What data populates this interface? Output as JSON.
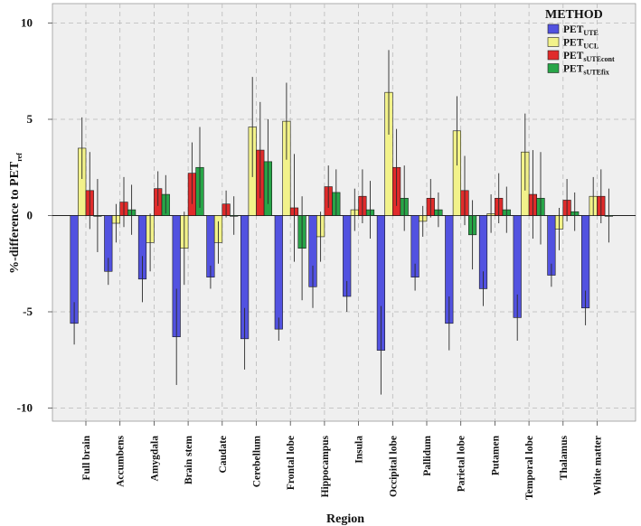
{
  "chart_data": {
    "type": "bar",
    "xlabel": "Region",
    "ylabel_main": "%-difference to PET",
    "ylabel_sub": "ref",
    "ylim": [
      -11,
      10.5
    ],
    "yticks": [
      10,
      5,
      0,
      -5,
      -10
    ],
    "grid": true,
    "legend_title": "METHOD",
    "legend_position": "top-right",
    "categories": [
      "Full brain",
      "Accumbens",
      "Amygdala",
      "Brain stem",
      "Caudate",
      "Cerebellum",
      "Frontal lobe",
      "Hippocampus",
      "Insula",
      "Occipital lobe",
      "Pallidum",
      "Parietal lobe",
      "Putamen",
      "Temporal lobe",
      "Thalamus",
      "White matter"
    ],
    "series": [
      {
        "name": "PET",
        "sub": "UTE",
        "color": "#5252e0",
        "values": [
          -5.6,
          -2.9,
          -3.3,
          -6.3,
          -3.2,
          -6.4,
          -5.9,
          -3.7,
          -4.2,
          -7.0,
          -3.2,
          -5.6,
          -3.8,
          -5.3,
          -3.1,
          -4.8
        ],
        "errors": [
          1.1,
          0.7,
          1.2,
          2.5,
          0.6,
          1.6,
          0.6,
          1.1,
          0.8,
          2.3,
          0.7,
          1.4,
          0.9,
          1.2,
          0.6,
          0.9
        ]
      },
      {
        "name": "PET",
        "sub": "UCL",
        "color": "#f2f28a",
        "values": [
          3.5,
          -0.4,
          -1.4,
          -1.7,
          -1.4,
          4.6,
          4.9,
          -1.1,
          0.3,
          6.4,
          -0.3,
          4.4,
          0.1,
          3.3,
          -0.7,
          1.0
        ],
        "errors": [
          1.6,
          1.0,
          1.5,
          1.9,
          1.1,
          2.6,
          2.0,
          1.3,
          1.1,
          2.2,
          0.8,
          1.8,
          1.0,
          2.0,
          1.1,
          1.0
        ]
      },
      {
        "name": "PET",
        "sub": "sUTEcont",
        "color": "#e02b2b",
        "values": [
          1.3,
          0.7,
          1.4,
          2.2,
          0.6,
          3.4,
          0.4,
          1.5,
          1.0,
          2.5,
          0.9,
          1.3,
          0.9,
          1.1,
          0.8,
          1.0
        ],
        "errors": [
          2.0,
          1.3,
          0.9,
          1.6,
          0.7,
          2.5,
          2.8,
          1.1,
          1.4,
          2.0,
          1.0,
          1.8,
          1.3,
          2.3,
          1.1,
          1.4
        ]
      },
      {
        "name": "PET",
        "sub": "sUTEfix",
        "color": "#28a548",
        "values": [
          0.0,
          0.3,
          1.1,
          2.5,
          0.0,
          2.8,
          -1.7,
          1.2,
          0.3,
          0.9,
          0.3,
          -1.0,
          0.3,
          0.9,
          0.2,
          0.0
        ],
        "errors": [
          1.9,
          1.3,
          1.0,
          2.1,
          1.0,
          2.2,
          2.7,
          1.2,
          1.5,
          1.7,
          0.9,
          1.8,
          1.2,
          2.4,
          1.0,
          1.4
        ]
      }
    ]
  }
}
